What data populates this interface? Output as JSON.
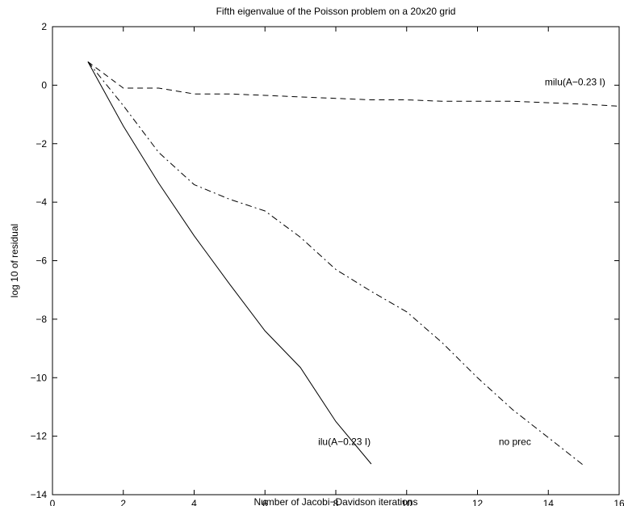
{
  "chart_data": {
    "type": "line",
    "title": "Fifth eigenvalue of the Poisson problem on a 20x20 grid",
    "xlabel": "Number of Jacobi−Davidson iterations",
    "ylabel": "log 10 of residual",
    "xlim": [
      0,
      16
    ],
    "ylim": [
      -14,
      2
    ],
    "xticks": [
      0,
      2,
      4,
      6,
      8,
      10,
      12,
      14,
      16
    ],
    "yticks": [
      2,
      0,
      -2,
      -4,
      -6,
      -8,
      -10,
      -12,
      -14
    ],
    "xtick_labels": [
      "0",
      "2",
      "4",
      "6",
      "8",
      "10",
      "12",
      "14",
      "16"
    ],
    "ytick_labels": [
      "2",
      "0",
      "−2",
      "−4",
      "−6",
      "−8",
      "−10",
      "−12",
      "−14"
    ],
    "grid": false,
    "series": [
      {
        "name": "ilu(A−0.23 I)",
        "style": "solid",
        "color": "#000000",
        "x": [
          1,
          2,
          3,
          4,
          5,
          6,
          7,
          8,
          9
        ],
        "y": [
          0.8,
          -1.4,
          -3.35,
          -5.15,
          -6.8,
          -8.4,
          -9.65,
          -11.5,
          -12.95
        ]
      },
      {
        "name": "no prec",
        "style": "dashdot",
        "color": "#000000",
        "x": [
          1,
          2,
          3,
          4,
          5,
          6,
          7,
          8,
          9,
          10,
          11,
          12,
          13,
          14,
          15
        ],
        "y": [
          0.8,
          -0.7,
          -2.3,
          -3.4,
          -3.9,
          -4.3,
          -5.2,
          -6.3,
          -7.05,
          -7.75,
          -8.8,
          -10.0,
          -11.1,
          -12.05,
          -13.0
        ]
      },
      {
        "name": "milu(A−0.23 I)",
        "style": "dashed",
        "color": "#000000",
        "x": [
          1,
          2,
          3,
          4,
          5,
          6,
          7,
          8,
          9,
          10,
          11,
          12,
          13,
          14,
          15,
          16
        ],
        "y": [
          0.8,
          -0.1,
          -0.1,
          -0.3,
          -0.3,
          -0.35,
          -0.4,
          -0.45,
          -0.5,
          -0.5,
          -0.55,
          -0.55,
          -0.55,
          -0.6,
          -0.65,
          -0.72
        ]
      }
    ],
    "annotations": [
      {
        "text": "milu(A−0.23 I)",
        "x": 13.9,
        "y": 0.0
      },
      {
        "text": "no prec",
        "x": 12.6,
        "y": -12.3
      },
      {
        "text": "ilu(A−0.23 I)",
        "x": 7.5,
        "y": -12.3
      }
    ]
  }
}
